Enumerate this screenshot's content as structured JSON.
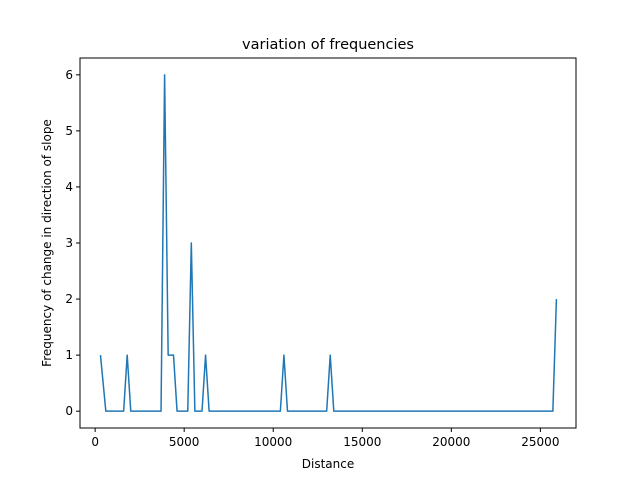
{
  "chart_data": {
    "type": "line",
    "title": "variation of frequencies",
    "xlabel": "Distance",
    "ylabel": "Frequency of change in direction of slope",
    "xlim": [
      -850,
      27000
    ],
    "ylim": [
      -0.3,
      6.3
    ],
    "xticks": [
      0,
      5000,
      10000,
      15000,
      20000,
      25000
    ],
    "yticks": [
      0,
      1,
      2,
      3,
      4,
      5,
      6
    ],
    "grid": false,
    "legend": "none",
    "series": [
      {
        "color": "#1f77b4",
        "x": [
          300,
          600,
          1600,
          1800,
          2000,
          3600,
          3700,
          3900,
          4100,
          4200,
          4400,
          4600,
          5100,
          5200,
          5400,
          5600,
          5900,
          6000,
          6200,
          6400,
          10400,
          10600,
          10800,
          13000,
          13200,
          13400,
          25700,
          25900
        ],
        "y": [
          1,
          0,
          0,
          1,
          0,
          0,
          0,
          6,
          1,
          1,
          1,
          0,
          0,
          0,
          3,
          0,
          0,
          0,
          1,
          0,
          0,
          1,
          0,
          0,
          1,
          0,
          0,
          2
        ]
      }
    ]
  }
}
